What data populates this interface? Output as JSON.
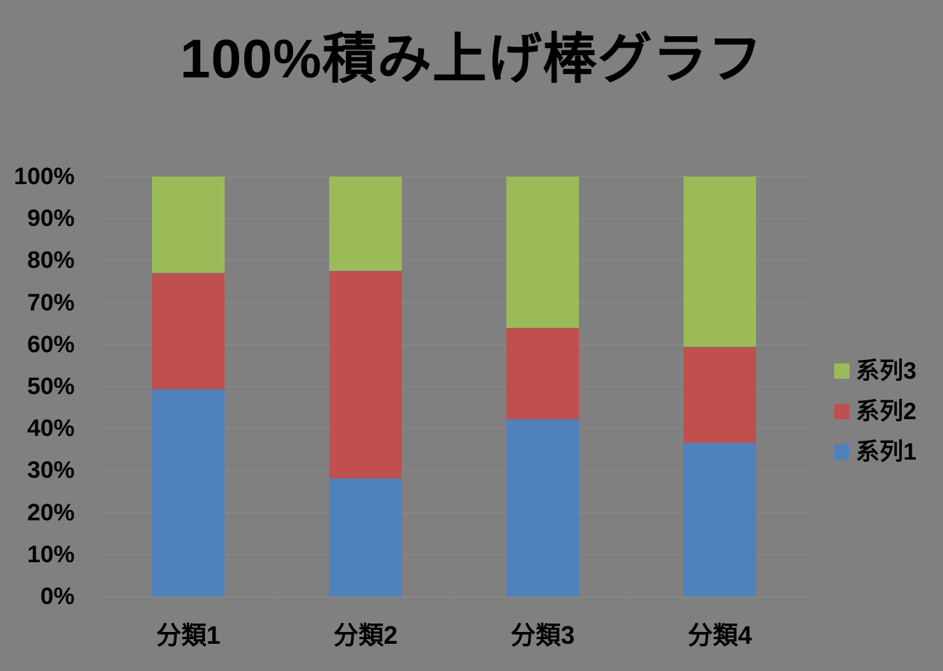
{
  "title": "100%積み上げ棒グラフ",
  "chart_data": {
    "type": "bar",
    "subtype": "100%-stacked-column",
    "title": "100%積み上げ棒グラフ",
    "xlabel": "",
    "ylabel": "",
    "categories": [
      "分類1",
      "分類2",
      "分類3",
      "分類4"
    ],
    "series": [
      {
        "name": "系列1",
        "color": "#4F81BD",
        "values_percent": [
          49.4,
          28.1,
          42.2,
          36.6
        ]
      },
      {
        "name": "系列2",
        "color": "#C0504D",
        "values_percent": [
          27.6,
          49.4,
          21.7,
          22.8
        ]
      },
      {
        "name": "系列3",
        "color": "#9BBB59",
        "values_percent": [
          23.0,
          22.5,
          36.1,
          40.6
        ]
      }
    ],
    "y_ticks": [
      "100%",
      "90%",
      "80%",
      "70%",
      "60%",
      "50%",
      "40%",
      "30%",
      "20%",
      "10%",
      "0%"
    ],
    "ylim": [
      0,
      100
    ],
    "grid": true,
    "legend_position": "right",
    "legend_order_top_to_bottom": [
      "系列3",
      "系列2",
      "系列1"
    ],
    "background_color": "#808080",
    "gridline_color": "#8C8C8C",
    "text_color": "#000000"
  }
}
